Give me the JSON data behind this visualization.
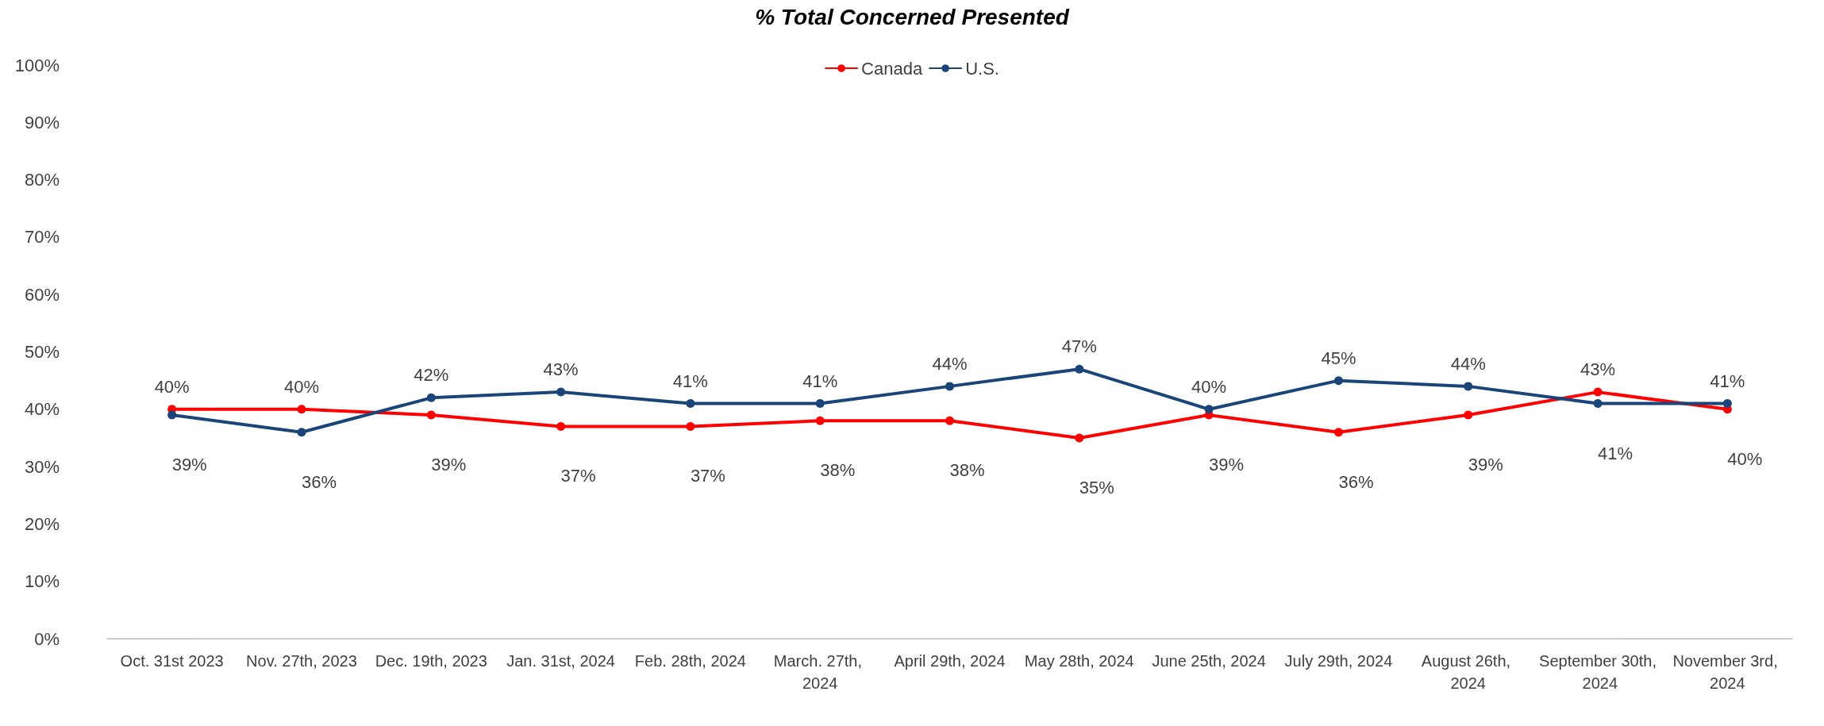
{
  "chart_data": {
    "type": "line",
    "title": "% Total Concerned Presented",
    "categories": [
      "Oct. 31st 2023",
      "Nov. 27th, 2023",
      "Dec. 19th, 2023",
      "Jan. 31st, 2024",
      "Feb. 28th, 2024",
      "March. 27th, 2024",
      "April 29th, 2024",
      "May 28th, 2024",
      "June 25th, 2024",
      "July 29th, 2024",
      "August 26th, 2024",
      "September 30th, 2024",
      "November 3rd, 2024"
    ],
    "series": [
      {
        "name": "Canada",
        "color": "#ff0000",
        "values": [
          40,
          40,
          39,
          37,
          37,
          38,
          38,
          35,
          39,
          36,
          39,
          43,
          40
        ],
        "value_labels": [
          "40%",
          "40%",
          "39%",
          "37%",
          "37%",
          "38%",
          "38%",
          "35%",
          "39%",
          "36%",
          "39%",
          "43%",
          "40%"
        ]
      },
      {
        "name": "U.S.",
        "color": "#1a4578",
        "values": [
          39,
          36,
          42,
          43,
          41,
          41,
          44,
          47,
          40,
          45,
          44,
          41,
          41
        ],
        "value_labels": [
          "39%",
          "36%",
          "42%",
          "43%",
          "41%",
          "41%",
          "44%",
          "47%",
          "40%",
          "45%",
          "44%",
          "41%",
          "41%"
        ]
      }
    ],
    "ylim": [
      0,
      100
    ],
    "yticks": [
      {
        "value": 0,
        "label": "0%"
      },
      {
        "value": 10,
        "label": "10%"
      },
      {
        "value": 20,
        "label": "20%"
      },
      {
        "value": 30,
        "label": "30%"
      },
      {
        "value": 40,
        "label": "40%"
      },
      {
        "value": 50,
        "label": "50%"
      },
      {
        "value": 60,
        "label": "60%"
      },
      {
        "value": 70,
        "label": "70%"
      },
      {
        "value": 80,
        "label": "80%"
      },
      {
        "value": 90,
        "label": "90%"
      },
      {
        "value": 100,
        "label": "100%"
      }
    ],
    "grid": false,
    "legend": "top",
    "marker": "circle",
    "line_style": "solid"
  }
}
